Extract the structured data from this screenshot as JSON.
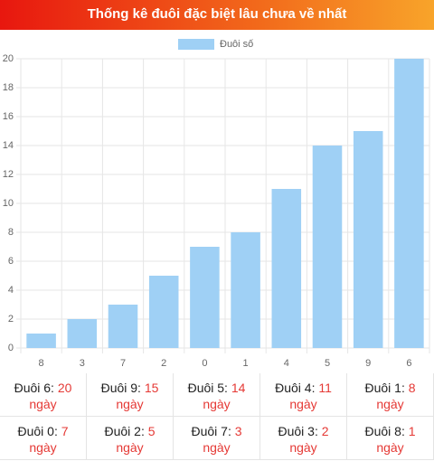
{
  "header": {
    "title": "Thống kê đuôi đặc biệt lâu chưa về nhất"
  },
  "chart_data": {
    "type": "bar",
    "categories": [
      "8",
      "3",
      "7",
      "2",
      "0",
      "1",
      "4",
      "5",
      "9",
      "6"
    ],
    "series": [
      {
        "name": "Đuôi số",
        "color": "#9fd0f5",
        "values": [
          1,
          2,
          3,
          5,
          7,
          8,
          11,
          14,
          15,
          20
        ]
      }
    ],
    "ylim": [
      0,
      20
    ],
    "yticks": [
      0,
      2,
      4,
      6,
      8,
      10,
      12,
      14,
      16,
      18,
      20
    ],
    "grid": true
  },
  "table": {
    "rows": [
      [
        {
          "label": "Đuôi 6:",
          "days": 20,
          "unit": "ngày"
        },
        {
          "label": "Đuôi 9:",
          "days": 15,
          "unit": "ngày"
        },
        {
          "label": "Đuôi 5:",
          "days": 14,
          "unit": "ngày"
        },
        {
          "label": "Đuôi 4:",
          "days": 11,
          "unit": "ngày"
        },
        {
          "label": "Đuôi 1:",
          "days": 8,
          "unit": "ngày"
        }
      ],
      [
        {
          "label": "Đuôi 0:",
          "days": 7,
          "unit": "ngày"
        },
        {
          "label": "Đuôi 2:",
          "days": 5,
          "unit": "ngày"
        },
        {
          "label": "Đuôi 7:",
          "days": 3,
          "unit": "ngày"
        },
        {
          "label": "Đuôi 3:",
          "days": 2,
          "unit": "ngày"
        },
        {
          "label": "Đuôi 8:",
          "days": 1,
          "unit": "ngày"
        }
      ]
    ]
  }
}
